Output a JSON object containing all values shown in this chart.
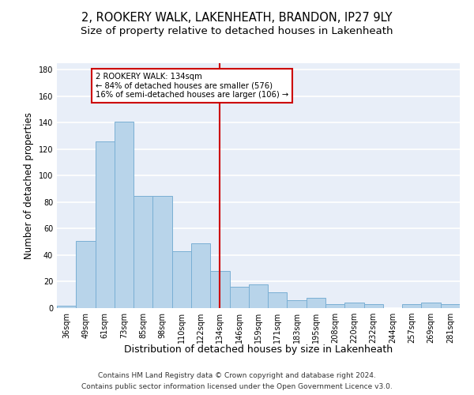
{
  "title1": "2, ROOKERY WALK, LAKENHEATH, BRANDON, IP27 9LY",
  "title2": "Size of property relative to detached houses in Lakenheath",
  "xlabel": "Distribution of detached houses by size in Lakenheath",
  "ylabel": "Number of detached properties",
  "footnote1": "Contains HM Land Registry data © Crown copyright and database right 2024.",
  "footnote2": "Contains public sector information licensed under the Open Government Licence v3.0.",
  "categories": [
    "36sqm",
    "49sqm",
    "61sqm",
    "73sqm",
    "85sqm",
    "98sqm",
    "110sqm",
    "122sqm",
    "134sqm",
    "146sqm",
    "159sqm",
    "171sqm",
    "183sqm",
    "195sqm",
    "208sqm",
    "220sqm",
    "232sqm",
    "244sqm",
    "257sqm",
    "269sqm",
    "281sqm"
  ],
  "values": [
    2,
    51,
    126,
    141,
    85,
    85,
    43,
    49,
    28,
    16,
    18,
    12,
    6,
    8,
    3,
    4,
    3,
    0,
    3,
    4,
    3
  ],
  "bar_color": "#b8d4ea",
  "bar_edge_color": "#7aafd4",
  "vline_color": "#cc0000",
  "annotation_text": "2 ROOKERY WALK: 134sqm\n← 84% of detached houses are smaller (576)\n16% of semi-detached houses are larger (106) →",
  "annotation_box_color": "#cc0000",
  "ylim": [
    0,
    185
  ],
  "yticks": [
    0,
    20,
    40,
    60,
    80,
    100,
    120,
    140,
    160,
    180
  ],
  "bg_color": "#e8eef8",
  "grid_color": "#ffffff",
  "title_fontsize": 10.5,
  "subtitle_fontsize": 9.5,
  "ylabel_fontsize": 8.5,
  "xlabel_fontsize": 9,
  "tick_fontsize": 7,
  "footnote_fontsize": 6.5
}
